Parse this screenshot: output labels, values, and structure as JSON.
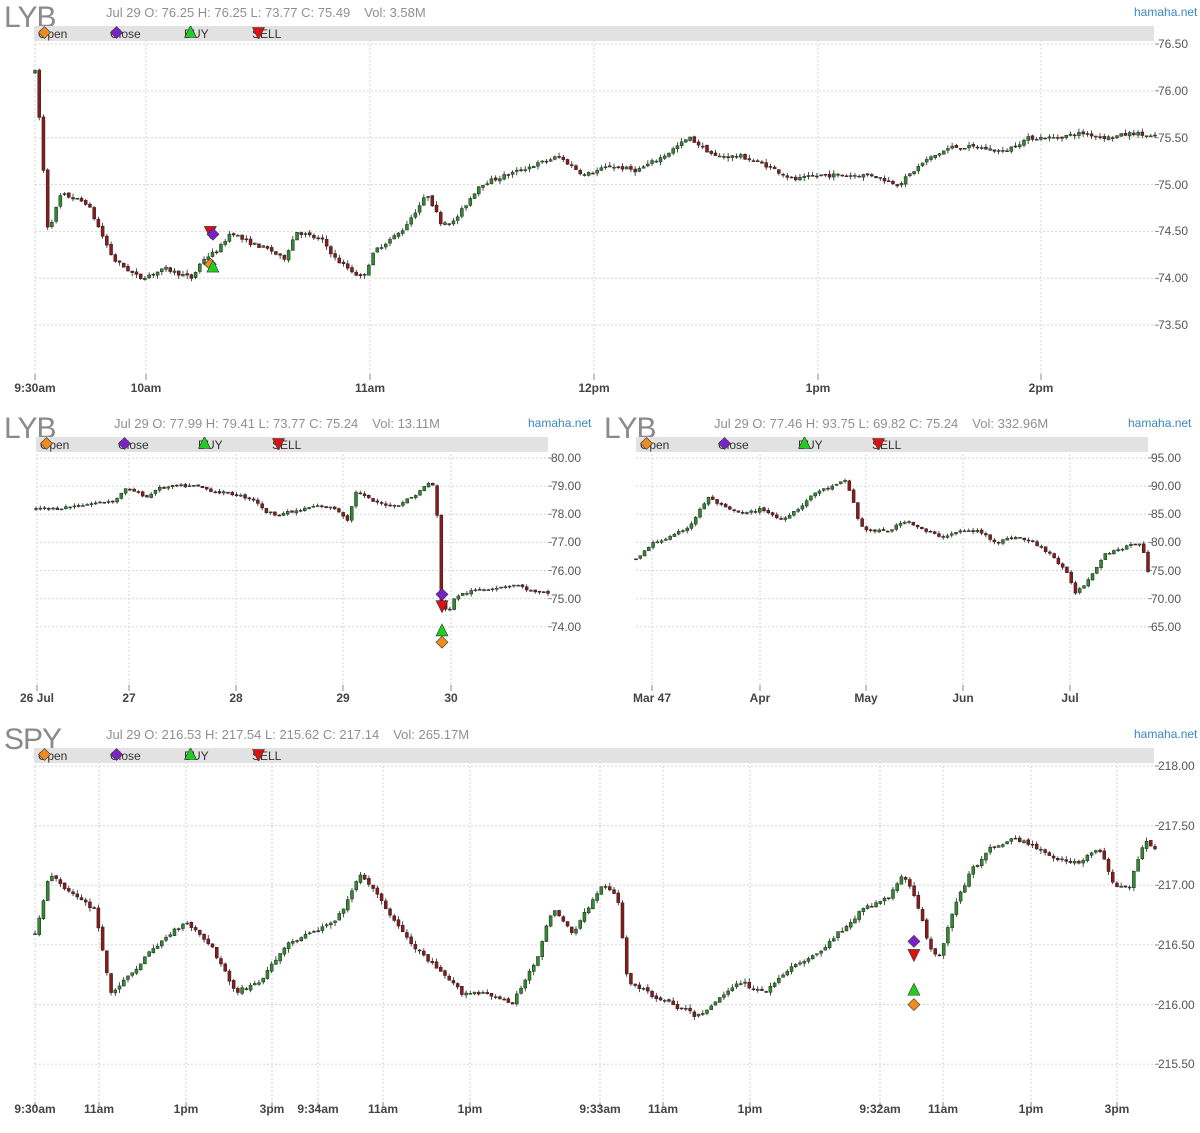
{
  "brand": "hamaha.net",
  "legend": [
    {
      "label": "Open",
      "color": "#f08c1e",
      "shape": "diamond",
      "icon": "orange-diamond-icon"
    },
    {
      "label": "Close",
      "color": "#7a22c8",
      "shape": "diamond",
      "icon": "purple-diamond-icon"
    },
    {
      "label": "BUY",
      "color": "#22cc22",
      "shape": "triangle-up",
      "icon": "green-triangle-up-icon"
    },
    {
      "label": "SELL",
      "color": "#dd1111",
      "shape": "triangle-down",
      "icon": "red-triangle-down-icon"
    }
  ],
  "colors": {
    "up": "#2e8b2e",
    "down": "#8b1a1a",
    "grid": "#d6d6d6",
    "legend_bg": "#e2e2e2"
  },
  "chart_data": [
    {
      "id": "lyb-intraday",
      "type": "candlestick",
      "symbol": "LYB",
      "date": "Jul 29",
      "open": "76.25",
      "high": "76.25",
      "low": "73.77",
      "close": "75.49",
      "volume": "3.58M",
      "info": [
        "Jul 29 O: 76.25 H: 76.25 L: 73.77 C: 75.49",
        "Vol: 3.58M"
      ],
      "ylim": [
        73.0,
        76.5
      ],
      "yticks": [
        "73.50",
        "74.00",
        "74.50",
        "75.00",
        "75.50",
        "76.00",
        "76.50"
      ],
      "xticks": [
        "9:30am",
        "10am",
        "11am",
        "12pm",
        "1pm",
        "2pm"
      ],
      "path": [
        [
          0,
          76.2
        ],
        [
          2,
          75.6
        ],
        [
          5,
          74.5
        ],
        [
          10,
          74.9
        ],
        [
          20,
          74.8
        ],
        [
          30,
          74.2
        ],
        [
          40,
          74.0
        ],
        [
          50,
          74.1
        ],
        [
          60,
          74.0
        ],
        [
          64,
          74.2
        ],
        [
          70,
          74.3
        ],
        [
          75,
          74.5
        ],
        [
          80,
          74.4
        ],
        [
          90,
          74.3
        ],
        [
          95,
          74.2
        ],
        [
          100,
          74.5
        ],
        [
          110,
          74.4
        ],
        [
          115,
          74.2
        ],
        [
          120,
          74.1
        ],
        [
          125,
          74.0
        ],
        [
          130,
          74.3
        ],
        [
          140,
          74.5
        ],
        [
          150,
          74.9
        ],
        [
          155,
          74.6
        ],
        [
          160,
          74.6
        ],
        [
          170,
          75.0
        ],
        [
          180,
          75.1
        ],
        [
          190,
          75.2
        ],
        [
          200,
          75.3
        ],
        [
          210,
          75.1
        ],
        [
          220,
          75.2
        ],
        [
          230,
          75.15
        ],
        [
          240,
          75.3
        ],
        [
          250,
          75.5
        ],
        [
          260,
          75.3
        ],
        [
          270,
          75.3
        ],
        [
          280,
          75.2
        ],
        [
          290,
          75.05
        ],
        [
          300,
          75.1
        ],
        [
          310,
          75.1
        ],
        [
          320,
          75.1
        ],
        [
          330,
          75.0
        ],
        [
          340,
          75.25
        ],
        [
          350,
          75.4
        ],
        [
          360,
          75.4
        ],
        [
          370,
          75.35
        ],
        [
          380,
          75.5
        ],
        [
          390,
          75.5
        ],
        [
          400,
          75.55
        ],
        [
          410,
          75.5
        ],
        [
          420,
          75.55
        ],
        [
          428,
          75.5
        ]
      ],
      "markers": [
        {
          "type": "Open",
          "x": 67,
          "y": 74.15
        },
        {
          "type": "BUY",
          "x": 68,
          "y": 74.12
        },
        {
          "type": "SELL",
          "x": 67,
          "y": 74.5
        },
        {
          "type": "Close",
          "x": 68,
          "y": 74.47
        }
      ]
    },
    {
      "id": "lyb-5day",
      "type": "candlestick",
      "symbol": "LYB",
      "date": "Jul 29",
      "open": "77.99",
      "high": "79.41",
      "low": "73.77",
      "close": "75.24",
      "volume": "13.11M",
      "info": [
        "Jul 29 O: 77.99 H: 79.41 L: 73.77 C: 75.24",
        "Vol: 13.11M"
      ],
      "ylim": [
        72.0,
        80.0
      ],
      "yticks": [
        "74.00",
        "75.00",
        "76.00",
        "77.00",
        "78.00",
        "79.00",
        "80.00"
      ],
      "xticks": [
        "26 Jul",
        "27",
        "28",
        "29",
        "30"
      ],
      "path": [
        [
          0,
          78.2
        ],
        [
          5,
          78.2
        ],
        [
          10,
          78.3
        ],
        [
          15,
          78.4
        ],
        [
          20,
          78.5
        ],
        [
          22,
          78.9
        ],
        [
          25,
          78.8
        ],
        [
          28,
          78.6
        ],
        [
          30,
          78.9
        ],
        [
          35,
          79.0
        ],
        [
          40,
          79.0
        ],
        [
          45,
          78.8
        ],
        [
          50,
          78.7
        ],
        [
          55,
          78.5
        ],
        [
          57,
          78.1
        ],
        [
          60,
          78.0
        ],
        [
          65,
          78.1
        ],
        [
          70,
          78.3
        ],
        [
          75,
          78.2
        ],
        [
          78,
          77.8
        ],
        [
          80,
          78.8
        ],
        [
          85,
          78.4
        ],
        [
          90,
          78.3
        ],
        [
          95,
          78.7
        ],
        [
          98,
          79.1
        ],
        [
          100,
          79.0
        ],
        [
          101,
          75.0
        ],
        [
          103,
          74.5
        ],
        [
          105,
          75.1
        ],
        [
          110,
          75.3
        ],
        [
          115,
          75.4
        ],
        [
          120,
          75.5
        ],
        [
          125,
          75.2
        ],
        [
          128,
          75.2
        ]
      ],
      "markers": [
        {
          "type": "Open",
          "x": 101.5,
          "y": 73.45
        },
        {
          "type": "BUY",
          "x": 101.5,
          "y": 73.85
        },
        {
          "type": "SELL",
          "x": 101.5,
          "y": 74.75
        },
        {
          "type": "Close",
          "x": 101.5,
          "y": 75.15
        }
      ]
    },
    {
      "id": "lyb-daily",
      "type": "candlestick",
      "symbol": "LYB",
      "date": "Jul 29",
      "open": "77.46",
      "high": "93.75",
      "low": "69.82",
      "close": "75.24",
      "volume": "332.96M",
      "info": [
        "Jul 29 O: 77.46 H: 93.75 L: 69.82 C: 75.24",
        "Vol: 332.96M"
      ],
      "ylim": [
        55.0,
        95.0
      ],
      "yticks": [
        "65.00",
        "70.00",
        "75.00",
        "80.00",
        "85.00",
        "90.00",
        "95.00"
      ],
      "xticks": [
        "Mar 47",
        "Apr",
        "May",
        "Jun",
        "Jul"
      ],
      "path": [
        [
          0,
          77
        ],
        [
          5,
          80
        ],
        [
          10,
          81
        ],
        [
          15,
          83
        ],
        [
          20,
          88
        ],
        [
          25,
          86
        ],
        [
          30,
          85
        ],
        [
          35,
          86
        ],
        [
          40,
          84
        ],
        [
          45,
          86
        ],
        [
          50,
          89
        ],
        [
          55,
          90
        ],
        [
          58,
          91
        ],
        [
          60,
          88
        ],
        [
          62,
          83
        ],
        [
          65,
          82
        ],
        [
          70,
          82
        ],
        [
          75,
          84
        ],
        [
          80,
          82
        ],
        [
          85,
          81
        ],
        [
          90,
          82
        ],
        [
          95,
          82
        ],
        [
          100,
          80
        ],
        [
          105,
          81
        ],
        [
          110,
          80
        ],
        [
          115,
          78
        ],
        [
          120,
          74
        ],
        [
          122,
          71
        ],
        [
          125,
          73
        ],
        [
          130,
          78
        ],
        [
          135,
          79
        ],
        [
          140,
          80
        ],
        [
          142,
          75
        ]
      ],
      "markers": []
    },
    {
      "id": "spy-multi-day",
      "type": "candlestick",
      "symbol": "SPY",
      "date": "Jul 29",
      "open": "216.53",
      "high": "217.54",
      "low": "215.62",
      "close": "217.14",
      "volume": "265.17M",
      "info": [
        "Jul 29 O: 216.53 H: 217.54 L: 215.62 C: 217.14",
        "Vol: 265.17M"
      ],
      "ylim": [
        215.2,
        218.0
      ],
      "yticks": [
        "215.50",
        "216.00",
        "216.50",
        "217.00",
        "217.50",
        "218.00"
      ],
      "xticks": [
        "9:30am",
        "11am",
        "1pm",
        "3pm",
        "9:34am",
        "11am",
        "1pm",
        "9:33am",
        "11am",
        "1pm",
        "9:32am",
        "11am",
        "1pm",
        "3pm"
      ],
      "path": [
        [
          0,
          216.6
        ],
        [
          3,
          217.1
        ],
        [
          8,
          216.9
        ],
        [
          12,
          216.8
        ],
        [
          15,
          216.1
        ],
        [
          18,
          216.2
        ],
        [
          22,
          216.4
        ],
        [
          27,
          216.6
        ],
        [
          30,
          216.7
        ],
        [
          35,
          216.5
        ],
        [
          40,
          216.1
        ],
        [
          45,
          216.2
        ],
        [
          50,
          216.5
        ],
        [
          55,
          216.6
        ],
        [
          60,
          216.7
        ],
        [
          65,
          217.1
        ],
        [
          70,
          216.8
        ],
        [
          75,
          216.5
        ],
        [
          80,
          216.3
        ],
        [
          85,
          216.1
        ],
        [
          90,
          216.1
        ],
        [
          95,
          216.0
        ],
        [
          100,
          216.4
        ],
        [
          103,
          216.8
        ],
        [
          107,
          216.6
        ],
        [
          110,
          216.8
        ],
        [
          113,
          217.0
        ],
        [
          116,
          216.9
        ],
        [
          118,
          216.2
        ],
        [
          122,
          216.1
        ],
        [
          127,
          216.0
        ],
        [
          132,
          215.9
        ],
        [
          135,
          216.0
        ],
        [
          140,
          216.2
        ],
        [
          145,
          216.1
        ],
        [
          150,
          216.3
        ],
        [
          155,
          216.4
        ],
        [
          160,
          216.6
        ],
        [
          165,
          216.8
        ],
        [
          170,
          216.9
        ],
        [
          173,
          217.1
        ],
        [
          176,
          216.8
        ],
        [
          178,
          216.5
        ],
        [
          180,
          216.4
        ],
        [
          183,
          216.8
        ],
        [
          186,
          217.1
        ],
        [
          190,
          217.3
        ],
        [
          195,
          217.4
        ],
        [
          200,
          217.3
        ],
        [
          205,
          217.2
        ],
        [
          208,
          217.2
        ],
        [
          212,
          217.3
        ],
        [
          215,
          217.0
        ],
        [
          218,
          217.0
        ],
        [
          221,
          217.4
        ],
        [
          223,
          217.3
        ]
      ],
      "markers": [
        {
          "type": "Open",
          "x": 175,
          "y": 216.0
        },
        {
          "type": "BUY",
          "x": 175,
          "y": 216.12
        },
        {
          "type": "SELL",
          "x": 175,
          "y": 216.42
        },
        {
          "type": "Close",
          "x": 175,
          "y": 216.53
        }
      ]
    }
  ]
}
